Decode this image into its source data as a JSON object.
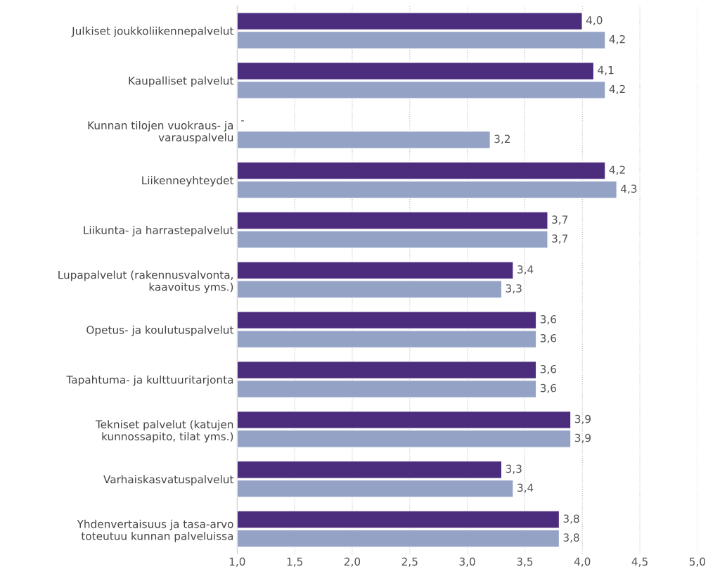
{
  "chart_data": {
    "type": "bar",
    "orientation": "horizontal",
    "categories": [
      "Julkiset joukkoliikennepalvelut",
      "Kaupalliset palvelut",
      "Kunnan tilojen vuokraus- ja\nvarauspalvelu",
      "Liikenneyhteydet",
      "Liikunta- ja harrastepalvelut",
      "Lupapalvelut (rakennusvalvonta,\nkaavoitus yms.)",
      "Opetus- ja koulutuspalvelut",
      "Tapahtuma- ja kulttuuritarjonta",
      "Tekniset palvelut (katujen\nkunnossapito, tilat yms.)",
      "Varhaiskasvatuspalvelut",
      "Yhdenvertaisuus ja tasa-arvo\ntoteutuu kunnan palveluissa"
    ],
    "series": [
      {
        "color": "#4b2c7d",
        "values": [
          4.0,
          4.1,
          null,
          4.2,
          3.7,
          3.4,
          3.6,
          3.6,
          3.9,
          3.3,
          3.8
        ],
        "value_labels": [
          "4,0",
          "4,1",
          "-",
          "4,2",
          "3,7",
          "3,4",
          "3,6",
          "3,6",
          "3,9",
          "3,3",
          "3,8"
        ]
      },
      {
        "color": "#94a3c5",
        "values": [
          4.2,
          4.2,
          3.2,
          4.3,
          3.7,
          3.3,
          3.6,
          3.6,
          3.9,
          3.4,
          3.8
        ],
        "value_labels": [
          "4,2",
          "4,2",
          "3,2",
          "4,3",
          "3,7",
          "3,3",
          "3,6",
          "3,6",
          "3,9",
          "3,4",
          "3,8"
        ]
      }
    ],
    "xlim": [
      1.0,
      5.0
    ],
    "xticks": [
      {
        "value": 1.0,
        "label": "1,0"
      },
      {
        "value": 1.5,
        "label": "1,5"
      },
      {
        "value": 2.0,
        "label": "2,0"
      },
      {
        "value": 2.5,
        "label": "2,5"
      },
      {
        "value": 3.0,
        "label": "3,0"
      },
      {
        "value": 3.5,
        "label": "3,5"
      },
      {
        "value": 4.0,
        "label": "4,0"
      },
      {
        "value": 4.5,
        "label": "4,5"
      },
      {
        "value": 5.0,
        "label": "5,0"
      }
    ],
    "grid": "x",
    "line_style": "dotted"
  }
}
